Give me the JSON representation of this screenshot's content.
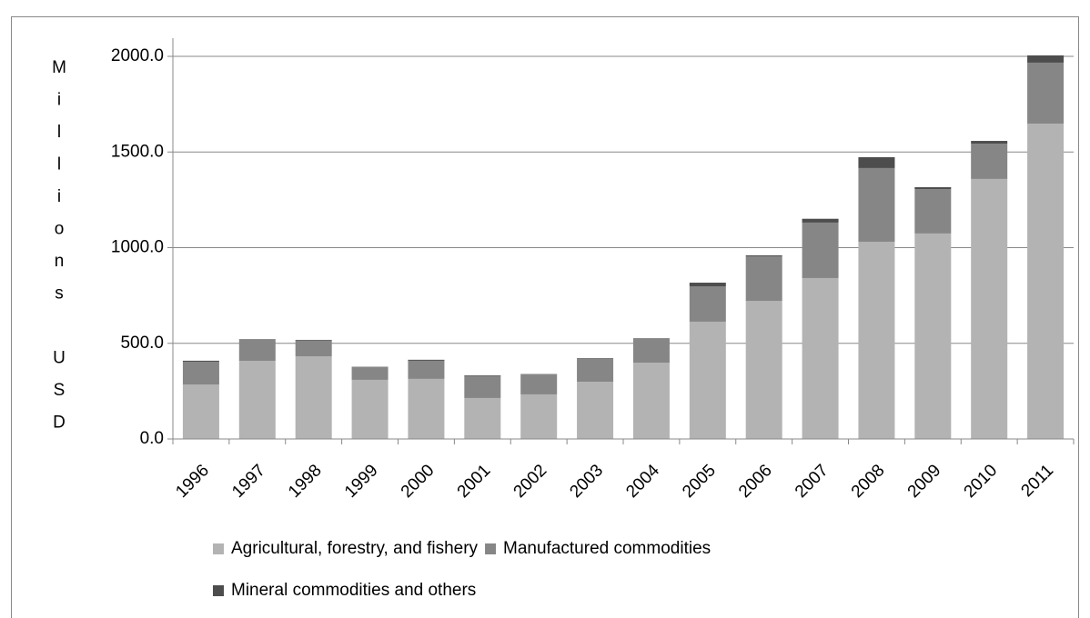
{
  "chart_data": {
    "type": "stacked_bar",
    "y_label": "Millions USD",
    "categories": [
      "1996",
      "1997",
      "1998",
      "1999",
      "2000",
      "2001",
      "2002",
      "2003",
      "2004",
      "2005",
      "2006",
      "2007",
      "2008",
      "2009",
      "2010",
      "2011"
    ],
    "series": [
      {
        "name": "Agricultural, forestry, and fishery",
        "color": "#b3b3b3",
        "values": [
          285,
          408,
          432,
          309,
          314,
          214,
          233,
          299,
          399,
          613,
          722,
          841,
          1031,
          1074,
          1359,
          1648
        ]
      },
      {
        "name": "Manufactured commodities",
        "color": "#868686",
        "values": [
          119,
          110,
          83,
          66,
          95,
          114,
          104,
          122,
          124,
          185,
          233,
          290,
          385,
          232,
          185,
          319
        ]
      },
      {
        "name": "Mineral commodities and others",
        "color": "#4d4d4d",
        "values": [
          5,
          3,
          3,
          2,
          5,
          4,
          2,
          2,
          3,
          19,
          5,
          20,
          57,
          10,
          14,
          38
        ]
      }
    ],
    "ylim": [
      0,
      2000
    ],
    "yticks": [
      {
        "value": 0,
        "label": "0.0"
      },
      {
        "value": 500,
        "label": "500.0"
      },
      {
        "value": 1000,
        "label": "1000.0"
      },
      {
        "value": 1500,
        "label": "1500.0"
      },
      {
        "value": 2000,
        "label": "2000.0"
      }
    ],
    "grid": true
  }
}
